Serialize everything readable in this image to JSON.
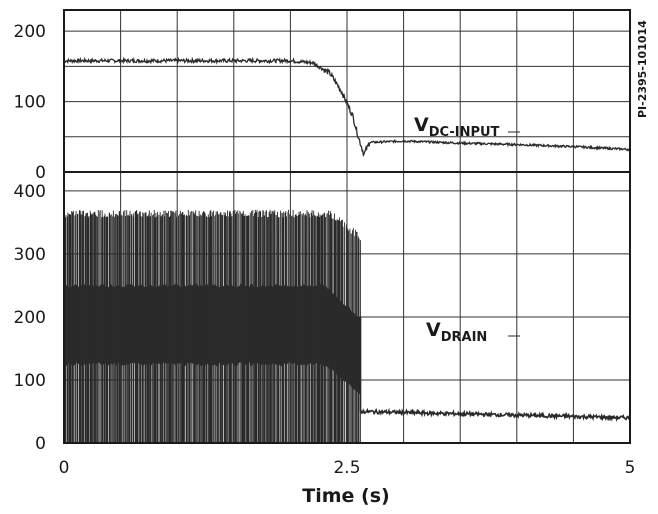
{
  "figure_id": "PI-2395-101014",
  "colors": {
    "trace": "#2a2a2a",
    "grid": "#333333",
    "frame": "#1a1a1a"
  },
  "chart_data": [
    {
      "type": "line",
      "series": [
        {
          "name": "V_DC-INPUT",
          "label_main": "V",
          "label_sub": "DC-INPUT",
          "x": [
            0,
            0.5,
            1.0,
            1.5,
            2.0,
            2.2,
            2.35,
            2.45,
            2.55,
            2.6,
            2.65,
            2.7,
            3.0,
            3.5,
            4.0,
            4.5,
            5.0
          ],
          "y": [
            158,
            158,
            158,
            158,
            158,
            155,
            140,
            115,
            80,
            50,
            25,
            42,
            44,
            41,
            39,
            36,
            32
          ]
        }
      ],
      "xlim": [
        0,
        5
      ],
      "ylim": [
        0,
        230
      ],
      "yticks": [
        0,
        100,
        200
      ],
      "xgrid": [
        0,
        0.5,
        1.0,
        1.5,
        2.0,
        2.5,
        3.0,
        3.5,
        4.0,
        4.5,
        5.0
      ],
      "ygrid": [
        0,
        50,
        100,
        150,
        200
      ],
      "grid": true
    },
    {
      "type": "line",
      "series": [
        {
          "name": "V_DRAIN",
          "label_main": "V",
          "label_sub": "DRAIN",
          "switching_until": 2.62,
          "peak": 370,
          "band_high": [
            [
              0,
              250
            ],
            [
              2.3,
              250
            ],
            [
              2.6,
              200
            ]
          ],
          "band_low": [
            [
              0,
              125
            ],
            [
              2.3,
              125
            ],
            [
              2.6,
              80
            ]
          ],
          "after_level": [
            [
              2.62,
              50
            ],
            [
              5.0,
              40
            ]
          ]
        }
      ],
      "xlim": [
        0,
        5
      ],
      "ylim": [
        0,
        430
      ],
      "yticks": [
        0,
        100,
        200,
        300,
        400
      ],
      "xticks": [
        "0",
        "2.5",
        "5"
      ],
      "xtick_values": [
        0,
        2.5,
        5
      ],
      "xlabel": "Time (s)",
      "grid": true
    }
  ]
}
